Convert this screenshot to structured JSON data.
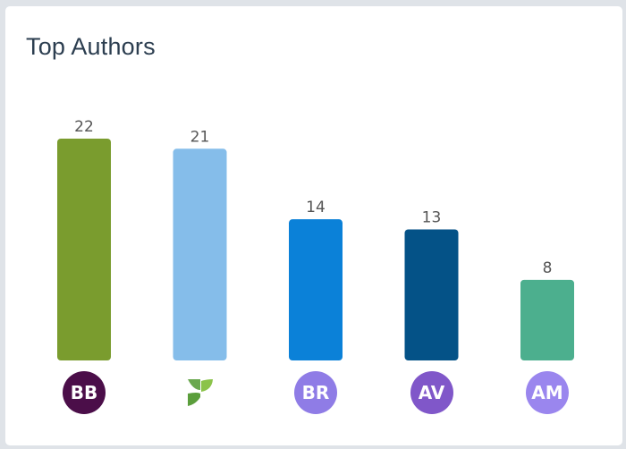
{
  "widget": {
    "title": "Top Authors"
  },
  "chart_data": {
    "type": "bar",
    "title": "Top Authors",
    "categories": [
      "BB",
      "logo",
      "BR",
      "AV",
      "AM"
    ],
    "values": [
      22,
      21,
      14,
      13,
      8
    ],
    "colors": [
      "#7a9c2e",
      "#85bdea",
      "#0b81d8",
      "#045287",
      "#4caf8e"
    ],
    "xlabel": "",
    "ylabel": "",
    "ylim": [
      0,
      22
    ],
    "grid": false,
    "legend": "none"
  },
  "authors": [
    {
      "initials": "BB",
      "avatar_color": "#4b0e49",
      "kind": "initials"
    },
    {
      "initials": "",
      "avatar_color": "",
      "kind": "logo",
      "icon": "green-leaf-logo-icon"
    },
    {
      "initials": "BR",
      "avatar_color": "#8f7ce6",
      "kind": "initials"
    },
    {
      "initials": "AV",
      "avatar_color": "#8057c9",
      "kind": "initials"
    },
    {
      "initials": "AM",
      "avatar_color": "#9a86ee",
      "kind": "initials"
    }
  ]
}
